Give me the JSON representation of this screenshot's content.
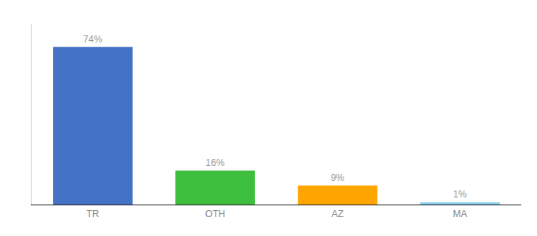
{
  "chart_data": {
    "type": "bar",
    "categories": [
      "TR",
      "OTH",
      "AZ",
      "MA"
    ],
    "values": [
      74,
      16,
      9,
      1
    ],
    "value_labels": [
      "74%",
      "16%",
      "9%",
      "1%"
    ],
    "colors": [
      "#4472C4",
      "#3DBF3D",
      "#FFA500",
      "#87CEEB"
    ],
    "ylim": [
      0,
      85
    ],
    "grid": false,
    "data_labels": true,
    "tick_labels": "x"
  }
}
